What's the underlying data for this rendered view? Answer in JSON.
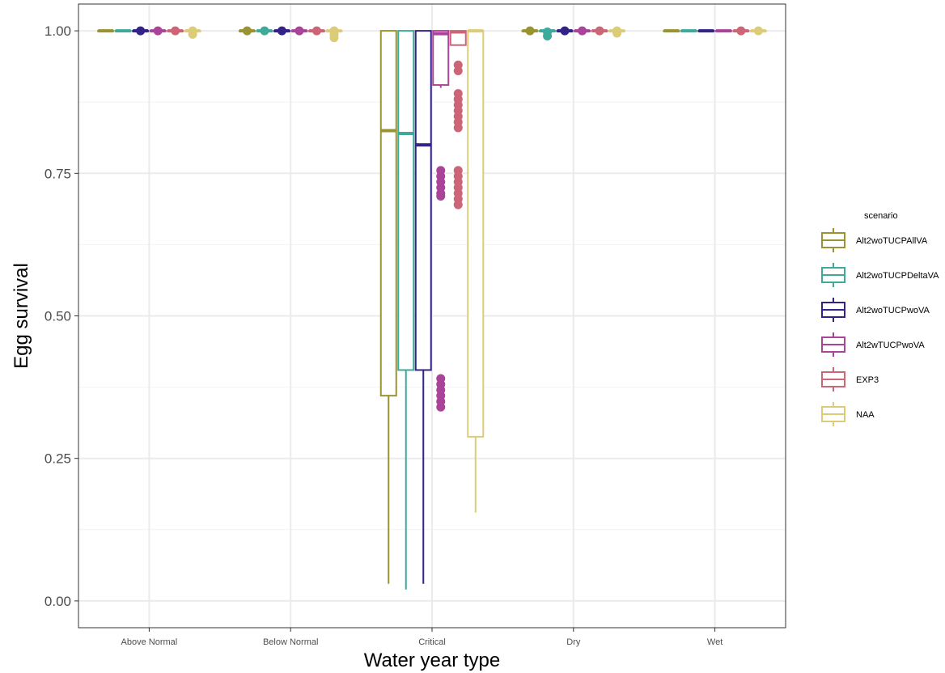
{
  "chart_data": {
    "type": "boxplot",
    "xlabel": "Water year type",
    "ylabel": "Egg survival",
    "ylim": [
      0,
      1
    ],
    "yticks": [
      0.0,
      0.25,
      0.5,
      0.75,
      1.0
    ],
    "ytick_labels": [
      "0.00",
      "0.25",
      "0.50",
      "0.75",
      "1.00"
    ],
    "categories": [
      "Above Normal",
      "Below Normal",
      "Critical",
      "Dry",
      "Wet"
    ],
    "grid": true,
    "legend": {
      "title": "scenario",
      "position": "right"
    },
    "series": [
      {
        "name": "Alt2woTUCPAllVA",
        "color": "#9a9331",
        "boxes": [
          {
            "min": 1.0,
            "q1": 1.0,
            "median": 1.0,
            "q3": 1.0,
            "max": 1.0,
            "outliers": []
          },
          {
            "min": 1.0,
            "q1": 1.0,
            "median": 1.0,
            "q3": 1.0,
            "max": 1.0,
            "outliers": [
              1.0
            ]
          },
          {
            "min": 0.03,
            "q1": 0.36,
            "median": 0.825,
            "q3": 1.0,
            "max": 1.0,
            "outliers": []
          },
          {
            "min": 1.0,
            "q1": 1.0,
            "median": 1.0,
            "q3": 1.0,
            "max": 1.0,
            "outliers": [
              1.0
            ]
          },
          {
            "min": 1.0,
            "q1": 1.0,
            "median": 1.0,
            "q3": 1.0,
            "max": 1.0,
            "outliers": []
          }
        ]
      },
      {
        "name": "Alt2woTUCPDeltaVA",
        "color": "#3eaa9a",
        "boxes": [
          {
            "min": 1.0,
            "q1": 1.0,
            "median": 1.0,
            "q3": 1.0,
            "max": 1.0,
            "outliers": []
          },
          {
            "min": 1.0,
            "q1": 1.0,
            "median": 1.0,
            "q3": 1.0,
            "max": 1.0,
            "outliers": [
              1.0
            ]
          },
          {
            "min": 0.02,
            "q1": 0.405,
            "median": 0.82,
            "q3": 1.0,
            "max": 1.0,
            "outliers": []
          },
          {
            "min": 1.0,
            "q1": 1.0,
            "median": 1.0,
            "q3": 1.0,
            "max": 1.0,
            "outliers": [
              0.998,
              0.991
            ]
          },
          {
            "min": 1.0,
            "q1": 1.0,
            "median": 1.0,
            "q3": 1.0,
            "max": 1.0,
            "outliers": []
          }
        ]
      },
      {
        "name": "Alt2woTUCPwoVA",
        "color": "#332288",
        "boxes": [
          {
            "min": 1.0,
            "q1": 1.0,
            "median": 1.0,
            "q3": 1.0,
            "max": 1.0,
            "outliers": [
              1.0
            ]
          },
          {
            "min": 1.0,
            "q1": 1.0,
            "median": 1.0,
            "q3": 1.0,
            "max": 1.0,
            "outliers": [
              1.0
            ]
          },
          {
            "min": 0.03,
            "q1": 0.405,
            "median": 0.8,
            "q3": 1.0,
            "max": 1.0,
            "outliers": []
          },
          {
            "min": 1.0,
            "q1": 1.0,
            "median": 1.0,
            "q3": 1.0,
            "max": 1.0,
            "outliers": [
              1.0
            ]
          },
          {
            "min": 1.0,
            "q1": 1.0,
            "median": 1.0,
            "q3": 1.0,
            "max": 1.0,
            "outliers": []
          }
        ]
      },
      {
        "name": "Alt2wTUCPwoVA",
        "color": "#aa4499",
        "boxes": [
          {
            "min": 1.0,
            "q1": 1.0,
            "median": 1.0,
            "q3": 1.0,
            "max": 1.0,
            "outliers": [
              1.0
            ]
          },
          {
            "min": 1.0,
            "q1": 1.0,
            "median": 1.0,
            "q3": 1.0,
            "max": 1.0,
            "outliers": [
              1.0
            ]
          },
          {
            "min": 0.9,
            "q1": 0.905,
            "median": 0.995,
            "q3": 1.0,
            "max": 1.0,
            "outliers": [
              0.755,
              0.745,
              0.735,
              0.725,
              0.715,
              0.71,
              0.39,
              0.38,
              0.37,
              0.36,
              0.35,
              0.34
            ]
          },
          {
            "min": 1.0,
            "q1": 1.0,
            "median": 1.0,
            "q3": 1.0,
            "max": 1.0,
            "outliers": [
              1.0
            ]
          },
          {
            "min": 1.0,
            "q1": 1.0,
            "median": 1.0,
            "q3": 1.0,
            "max": 1.0,
            "outliers": []
          }
        ]
      },
      {
        "name": "EXP3",
        "color": "#cc6677",
        "boxes": [
          {
            "min": 1.0,
            "q1": 1.0,
            "median": 1.0,
            "q3": 1.0,
            "max": 1.0,
            "outliers": [
              1.0
            ]
          },
          {
            "min": 1.0,
            "q1": 1.0,
            "median": 1.0,
            "q3": 1.0,
            "max": 1.0,
            "outliers": [
              1.0
            ]
          },
          {
            "min": 0.975,
            "q1": 0.975,
            "median": 0.998,
            "q3": 1.0,
            "max": 1.0,
            "outliers": [
              0.94,
              0.93,
              0.89,
              0.88,
              0.87,
              0.86,
              0.85,
              0.84,
              0.83,
              0.755,
              0.745,
              0.735,
              0.725,
              0.715,
              0.705,
              0.695
            ]
          },
          {
            "min": 1.0,
            "q1": 1.0,
            "median": 1.0,
            "q3": 1.0,
            "max": 1.0,
            "outliers": [
              1.0
            ]
          },
          {
            "min": 1.0,
            "q1": 1.0,
            "median": 1.0,
            "q3": 1.0,
            "max": 1.0,
            "outliers": [
              1.0
            ]
          }
        ]
      },
      {
        "name": "NAA",
        "color": "#ddcc77",
        "boxes": [
          {
            "min": 1.0,
            "q1": 1.0,
            "median": 1.0,
            "q3": 1.0,
            "max": 1.0,
            "outliers": [
              1.0,
              0.994
            ]
          },
          {
            "min": 1.0,
            "q1": 1.0,
            "median": 1.0,
            "q3": 1.0,
            "max": 1.0,
            "outliers": [
              1.0,
              0.994,
              0.988
            ]
          },
          {
            "min": 0.155,
            "q1": 0.288,
            "median": 1.0,
            "q3": 1.0,
            "max": 1.0,
            "outliers": []
          },
          {
            "min": 1.0,
            "q1": 1.0,
            "median": 1.0,
            "q3": 1.0,
            "max": 1.0,
            "outliers": [
              1.0,
              0.996
            ]
          },
          {
            "min": 1.0,
            "q1": 1.0,
            "median": 1.0,
            "q3": 1.0,
            "max": 1.0,
            "outliers": [
              1.0
            ]
          }
        ]
      }
    ]
  }
}
